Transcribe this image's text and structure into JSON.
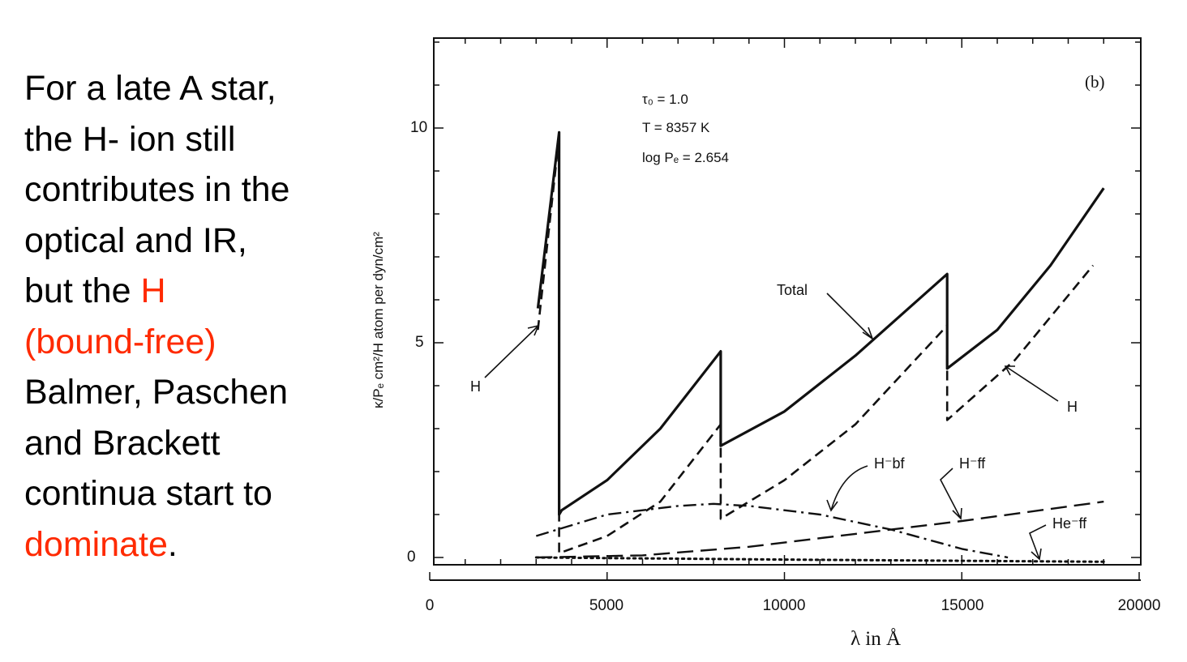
{
  "slide_text": {
    "line1": "For a late A star,",
    "line2": "the H- ion still",
    "line3": "contributes in the",
    "line4": "optical and IR,",
    "line5_pre": "but the ",
    "line5_red": "H",
    "line6": "(bound-free)",
    "line7": "Balmer, Paschen",
    "line8": "and Brackett",
    "line9": "continua start to",
    "line10_red": "dominate",
    "line10_post": "."
  },
  "colors": {
    "text": "#000000",
    "highlight": "#ff2a00",
    "ink": "#111111"
  },
  "chart_data": {
    "type": "line",
    "panel_label": "(b)",
    "xlabel": "λ in Å",
    "ylabel": "κ/Pₑ cm²/H atom per dyn/cm²",
    "xlim": [
      0,
      20000
    ],
    "ylim": [
      -0.6,
      12
    ],
    "x_ticks": [
      0,
      5000,
      10000,
      15000,
      20000
    ],
    "y_ticks": [
      0,
      5,
      10
    ],
    "annotations_params": {
      "tau": "τ₀ = 1.0",
      "temp": "T = 8357 K",
      "pressure": "log Pₑ = 2.654"
    },
    "curve_labels": {
      "total": "Total",
      "h_left": "H",
      "h_right": "H",
      "hminus_bf": "H⁻bf",
      "hminus_ff": "H⁻ff",
      "heminus_ff": "He⁻ff"
    },
    "series": [
      {
        "name": "Total",
        "style": "solid",
        "x": [
          3050,
          3647,
          3647,
          3720,
          5000,
          6500,
          8204,
          8204,
          10000,
          12000,
          14588,
          14588,
          16000,
          17500,
          19000
        ],
        "y": [
          5.8,
          9.9,
          1.0,
          1.1,
          1.8,
          3.0,
          4.8,
          2.6,
          3.4,
          4.7,
          6.6,
          4.4,
          5.3,
          6.8,
          8.6
        ]
      },
      {
        "name": "H",
        "style": "dashed",
        "x": [
          3050,
          3647,
          3647,
          5000,
          6500,
          8204,
          8204,
          10000,
          12000,
          14588,
          14588,
          16500,
          18700
        ],
        "y": [
          5.3,
          9.8,
          0.1,
          0.5,
          1.3,
          3.1,
          0.9,
          1.8,
          3.1,
          5.4,
          3.2,
          4.6,
          6.8
        ]
      },
      {
        "name": "H⁻bf",
        "style": "dashdot",
        "x": [
          3000,
          5000,
          7000,
          8000,
          9000,
          11000,
          13000,
          15000,
          16300
        ],
        "y": [
          0.5,
          1.0,
          1.2,
          1.25,
          1.2,
          1.0,
          0.65,
          0.2,
          0.0
        ]
      },
      {
        "name": "H⁻ff",
        "style": "longdash",
        "x": [
          3000,
          6000,
          9000,
          12000,
          15000,
          19000
        ],
        "y": [
          0.0,
          0.05,
          0.25,
          0.55,
          0.85,
          1.3
        ]
      },
      {
        "name": "He⁻ff",
        "style": "dotted",
        "x": [
          3000,
          10000,
          19000
        ],
        "y": [
          0.0,
          -0.05,
          -0.1
        ]
      }
    ]
  }
}
